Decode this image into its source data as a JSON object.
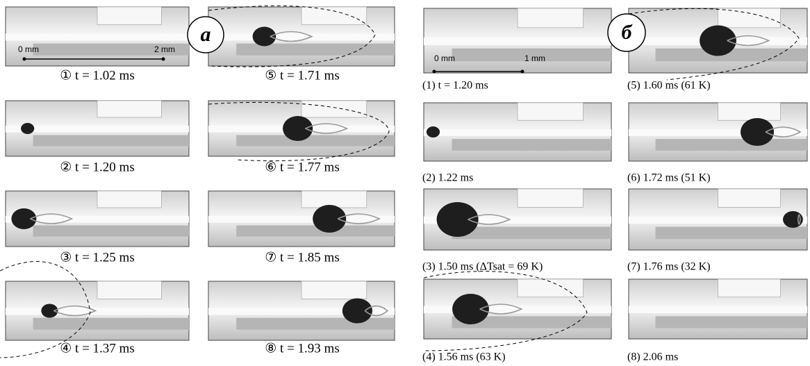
{
  "panels": [
    {
      "label": "a",
      "scale": [
        "0 mm",
        "2 mm"
      ],
      "captions": [
        "① t = 1.02 ms",
        "② t = 1.20 ms",
        "③ t = 1.25 ms",
        "④ t = 1.37 ms",
        "⑤ t = 1.71 ms",
        "⑥ t = 1.77 ms",
        "⑦ t = 1.85 ms",
        "⑧ t = 1.93 ms"
      ]
    },
    {
      "label": "б",
      "scale": [
        "0 mm",
        "1 mm"
      ],
      "captions": [
        "(1) t = 1.20 ms",
        "(2) 1.22 ms",
        "(3) 1.50 ms (ΔTsat = 69 K)",
        "(4) 1.56 ms (63 K)",
        "(5) 1.60 ms (61 K)",
        "(6) 1.72 ms (51 K)",
        "(7) 1.76 ms (32 K)",
        "(8) 2.06 ms"
      ]
    }
  ]
}
